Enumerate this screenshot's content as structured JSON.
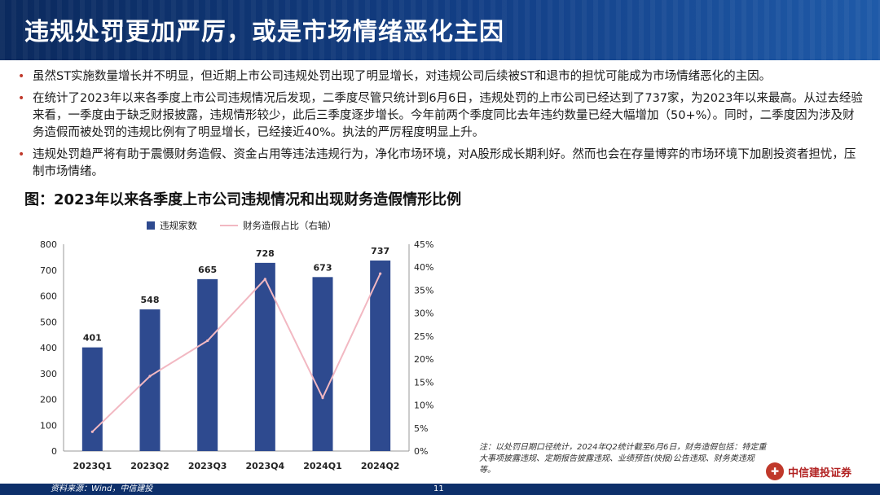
{
  "header": {
    "title": "违规处罚更加严厉，或是市场情绪恶化主因"
  },
  "bullets": [
    "虽然ST实施数量增长并不明显，但近期上市公司违规处罚出现了明显增长，对违规公司后续被ST和退市的担忧可能成为市场情绪恶化的主因。",
    "在统计了2023年以来各季度上市公司违规情况后发现，二季度尽管只统计到6月6日，违规处罚的上市公司已经达到了737家，为2023年以来最高。从过去经验来看，一季度由于缺乏财报披露，违规情形较少，此后三季度逐步增长。今年前两个季度同比去年违约数量已经大幅增加（50+%）。同时，二季度因为涉及财务造假而被处罚的违规比例有了明显增长，已经接近40%。执法的严厉程度明显上升。",
    "违规处罚趋严将有助于震慑财务造假、资金占用等违法违规行为，净化市场环境，对A股形成长期利好。然而也会在存量博弈的市场环境下加剧投资者担忧，压制市场情绪。"
  ],
  "figure": {
    "title": "图：2023年以来各季度上市公司违规情况和出现财务造假情形比例"
  },
  "chart_data": {
    "type": "bar",
    "categories": [
      "2023Q1",
      "2023Q2",
      "2023Q3",
      "2023Q4",
      "2024Q1",
      "2024Q2"
    ],
    "series": [
      {
        "name": "违规家数",
        "kind": "bar",
        "axis": "left",
        "color": "#2e4a8f",
        "values": [
          401,
          548,
          665,
          728,
          673,
          737
        ],
        "data_labels": [
          "401",
          "548",
          "665",
          "728",
          "673",
          "737"
        ]
      },
      {
        "name": "财务造假占比（右轴）",
        "kind": "line",
        "axis": "right",
        "color": "#f2b8c2",
        "values": [
          4.2,
          16.3,
          24.0,
          37.4,
          11.6,
          38.6
        ]
      }
    ],
    "ylim": [
      0,
      800
    ],
    "yticks": [
      "0",
      "100",
      "200",
      "300",
      "400",
      "500",
      "600",
      "700",
      "800"
    ],
    "y2lim": [
      0,
      45
    ],
    "y2ticks": [
      "0%",
      "5%",
      "10%",
      "15%",
      "20%",
      "25%",
      "30%",
      "35%",
      "40%",
      "45%"
    ],
    "legend_position": "top",
    "grid": false
  },
  "note": "注：以处罚日期口径统计，2024年Q2统计截至6月6日，财务造假包括：特定重大事项披露违规、定期报告披露违规、业绩预告(快报)公告违规、财务类违规等。",
  "footer": {
    "source": "资料来源：Wind，中信建投",
    "page": "11"
  },
  "logo": {
    "name": "中信建投证券"
  },
  "colors": {
    "header": "#133f86",
    "bar": "#2e4a8f",
    "line": "#f2b8c2",
    "bullet": "#c0392b"
  }
}
